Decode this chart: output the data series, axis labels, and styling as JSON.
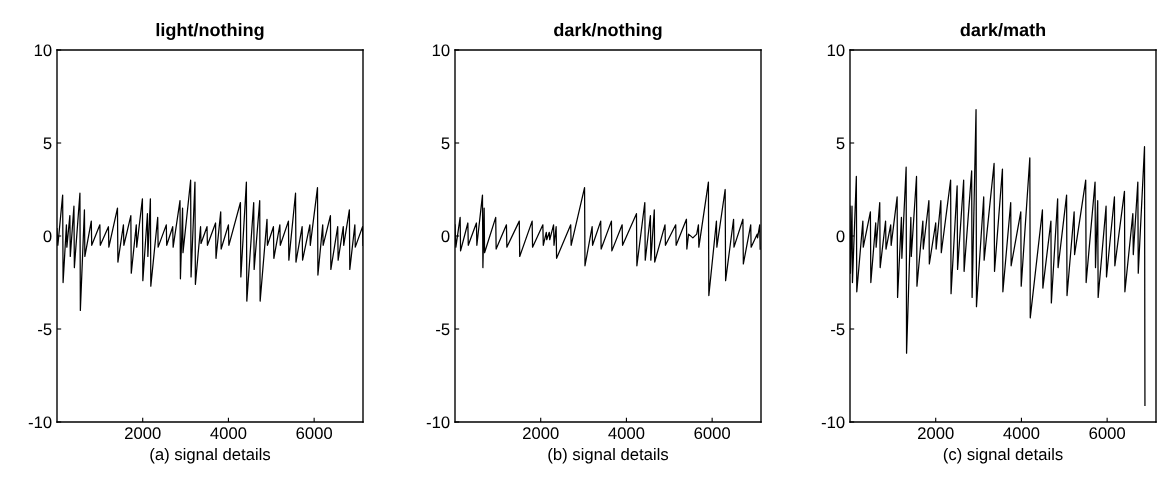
{
  "chart_data": [
    {
      "type": "line",
      "title": "light/nothing",
      "xlabel": "(a) signal details",
      "xlim": [
        0,
        7140
      ],
      "ylim": [
        -10,
        10
      ],
      "xticks": [
        2000,
        4000,
        6000
      ],
      "yticks": [
        -10,
        -5,
        0,
        5,
        10
      ],
      "x": [
        0,
        20,
        132,
        142,
        220,
        230,
        300,
        310,
        395,
        405,
        535,
        545,
        640,
        650,
        800,
        810,
        1000,
        1010,
        1200,
        1210,
        1411,
        1421,
        1550,
        1560,
        1723,
        1733,
        1850,
        1860,
        1993,
        2003,
        2110,
        2120,
        2179,
        2189,
        2350,
        2360,
        2550,
        2560,
        2700,
        2710,
        2870,
        2880,
        2930,
        2940,
        3118,
        3128,
        3219,
        3229,
        3350,
        3360,
        3500,
        3510,
        3700,
        3710,
        3820,
        3830,
        4000,
        4010,
        4280,
        4290,
        4419,
        4429,
        4590,
        4600,
        4730,
        4740,
        4900,
        4910,
        5050,
        5060,
        5200,
        5210,
        5400,
        5410,
        5566,
        5576,
        5720,
        5730,
        5900,
        5910,
        6078,
        6088,
        6200,
        6210,
        6380,
        6390,
        6550,
        6560,
        6680,
        6690,
        6822,
        6832,
        6950,
        6960,
        7130,
        7140
      ],
      "series": [
        {
          "color": "#000000",
          "values": [
            0.4,
            -0.5,
            2.2,
            -2.5,
            0.6,
            -0.6,
            1.1,
            -1.1,
            1.6,
            -1.7,
            2.3,
            -4.0,
            1.4,
            -1.1,
            0.8,
            -0.5,
            0.6,
            -0.5,
            0.5,
            -0.6,
            1.5,
            -1.4,
            0.6,
            -0.5,
            1.1,
            -2.0,
            0.6,
            -0.6,
            2.0,
            -2.4,
            1.2,
            -1.1,
            2.0,
            -2.7,
            1.0,
            -0.6,
            0.6,
            -0.5,
            0.5,
            -0.6,
            1.9,
            -2.3,
            1.5,
            -0.9,
            3.0,
            -2.2,
            2.9,
            -2.6,
            0.5,
            -0.4,
            0.5,
            -0.5,
            0.7,
            -1.2,
            1.3,
            -0.7,
            0.6,
            -0.5,
            1.8,
            -2.2,
            2.9,
            -3.5,
            1.8,
            -1.8,
            1.9,
            -3.5,
            0.9,
            -0.5,
            0.5,
            -1.2,
            0.6,
            -0.5,
            0.8,
            -1.3,
            2.3,
            -1.4,
            0.5,
            -1.3,
            0.6,
            -0.5,
            2.6,
            -2.1,
            0.6,
            -0.5,
            1.1,
            -1.8,
            0.5,
            -1.3,
            0.5,
            -0.5,
            1.4,
            -1.8,
            0.6,
            -0.6,
            0.5,
            -0.5
          ]
        }
      ]
    },
    {
      "type": "line",
      "title": "dark/nothing",
      "xlabel": "(b) signal details",
      "xlim": [
        0,
        7140
      ],
      "ylim": [
        -10,
        10
      ],
      "xticks": [
        2000,
        4000,
        6000
      ],
      "yticks": [
        -10,
        -5,
        0,
        5,
        10
      ],
      "x": [
        0,
        20,
        120,
        130,
        300,
        310,
        500,
        510,
        641,
        651,
        680,
        690,
        950,
        960,
        1200,
        1210,
        1500,
        1510,
        1800,
        1810,
        2050,
        2060,
        2130,
        2140,
        2200,
        2210,
        2300,
        2310,
        2360,
        2370,
        2700,
        2710,
        3023,
        3033,
        3200,
        3210,
        3400,
        3410,
        3650,
        3660,
        3900,
        3910,
        4234,
        4244,
        4429,
        4439,
        4560,
        4570,
        4650,
        4660,
        4900,
        4910,
        5150,
        5160,
        5400,
        5410,
        5450,
        5550,
        5640,
        5680,
        5690,
        5913,
        5923,
        6100,
        6110,
        6304,
        6314,
        6500,
        6510,
        6718,
        6728,
        6900,
        6910,
        7050,
        7060,
        7110,
        7120
      ],
      "series": [
        {
          "color": "#000000",
          "values": [
            0.6,
            -0.6,
            1.0,
            -0.8,
            0.7,
            -0.5,
            0.7,
            -0.5,
            2.2,
            -1.7,
            1.5,
            -0.9,
            1.0,
            -0.7,
            0.6,
            -0.6,
            0.8,
            -1.1,
            0.8,
            -0.6,
            0.6,
            -0.5,
            0.2,
            -0.2,
            0.2,
            -0.2,
            0.6,
            -0.5,
            0.5,
            -1.2,
            0.6,
            -0.5,
            2.6,
            -1.6,
            0.5,
            -0.5,
            0.8,
            -0.7,
            0.8,
            -0.8,
            0.6,
            -0.5,
            1.2,
            -1.6,
            1.8,
            -1.3,
            1.1,
            -1.3,
            1.4,
            -1.4,
            0.6,
            -0.5,
            0.6,
            -0.5,
            0.9,
            -0.7,
            0.1,
            -0.1,
            0.1,
            0.6,
            -0.6,
            2.9,
            -3.2,
            0.8,
            -0.6,
            2.5,
            -2.4,
            0.9,
            -0.6,
            0.9,
            -1.5,
            0.6,
            -0.6,
            0.1,
            -0.1,
            0.6,
            -0.7
          ]
        }
      ]
    },
    {
      "type": "line",
      "title": "dark/math",
      "xlabel": "(c) signal details",
      "xlim": [
        0,
        7140
      ],
      "ylim": [
        -10,
        10
      ],
      "xticks": [
        2000,
        4000,
        6000
      ],
      "yticks": [
        -10,
        -5,
        0,
        5,
        10
      ],
      "x": [
        0,
        10,
        47,
        57,
        148,
        158,
        300,
        310,
        476,
        486,
        600,
        610,
        694,
        704,
        830,
        840,
        950,
        960,
        1100,
        1110,
        1200,
        1210,
        1310,
        1320,
        1420,
        1430,
        1552,
        1562,
        1700,
        1710,
        1841,
        1851,
        2000,
        2010,
        2120,
        2130,
        2348,
        2358,
        2500,
        2510,
        2652,
        2662,
        2839,
        2849,
        2941,
        2951,
        3120,
        3130,
        3362,
        3372,
        3557,
        3567,
        3750,
        3760,
        3985,
        3995,
        4196,
        4206,
        4490,
        4500,
        4688,
        4698,
        4845,
        4855,
        5054,
        5064,
        5230,
        5240,
        5500,
        5510,
        5718,
        5728,
        5780,
        5790,
        5975,
        5985,
        6170,
        6180,
        6404,
        6414,
        6600,
        6610,
        6716,
        6726,
        6872,
        6882
      ],
      "series": [
        {
          "color": "#000000",
          "values": [
            1.6,
            -2.0,
            1.6,
            -2.5,
            3.2,
            -3.0,
            0.8,
            -0.6,
            1.3,
            -2.5,
            0.7,
            -0.6,
            1.8,
            -1.7,
            0.8,
            -0.7,
            0.6,
            -0.5,
            2.1,
            -3.3,
            1.0,
            -1.2,
            3.7,
            -6.3,
            1.0,
            -1.1,
            3.2,
            -2.7,
            0.8,
            -0.7,
            1.9,
            -1.5,
            0.7,
            -0.7,
            1.9,
            -0.9,
            3.0,
            -3.1,
            2.7,
            -1.8,
            3.0,
            -1.9,
            3.5,
            -3.3,
            6.8,
            -3.8,
            2.1,
            -1.3,
            3.9,
            -1.9,
            3.6,
            -3.0,
            1.8,
            -1.6,
            1.3,
            -2.7,
            4.2,
            -4.4,
            1.4,
            -2.8,
            0.8,
            -3.6,
            2.0,
            -1.7,
            2.2,
            -3.2,
            1.3,
            -1.0,
            3.0,
            -2.5,
            2.9,
            -1.7,
            1.9,
            -3.3,
            1.6,
            -2.2,
            2.1,
            -1.6,
            2.4,
            -3.0,
            1.2,
            -1.0,
            2.9,
            -2.0,
            4.8,
            -9.1
          ]
        }
      ]
    }
  ]
}
